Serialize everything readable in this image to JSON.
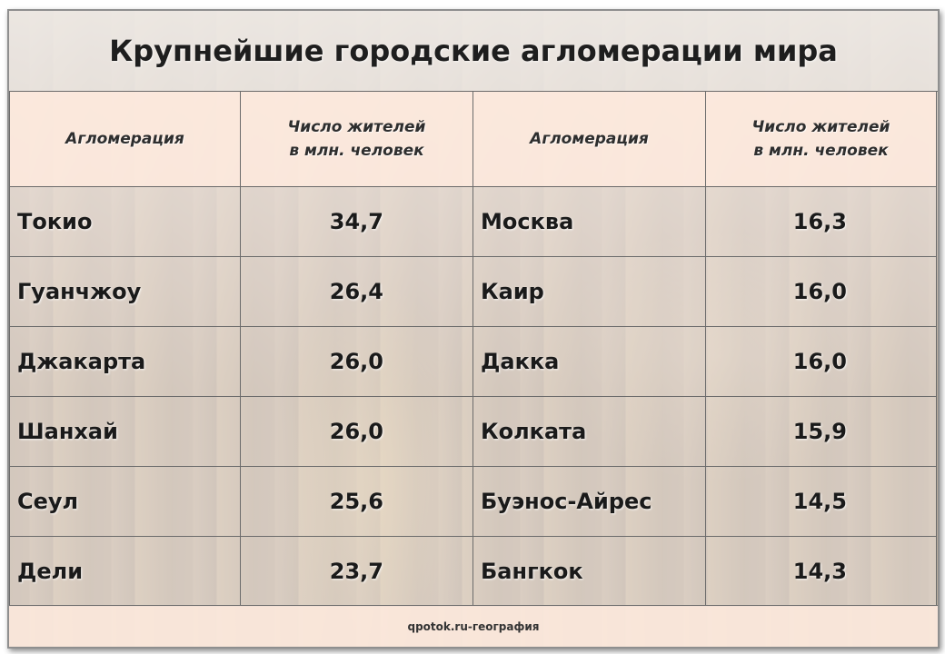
{
  "title": "Крупнейшие городские агломерации мира",
  "headers": {
    "col_name": "Агломерация",
    "col_value_line1": "Число жителей",
    "col_value_line2": "в млн. человек"
  },
  "rows": [
    {
      "left_name": "Токио",
      "left_value": "34,7",
      "right_name": "Москва",
      "right_value": "16,3"
    },
    {
      "left_name": "Гуанчжоу",
      "left_value": "26,4",
      "right_name": "Каир",
      "right_value": "16,0"
    },
    {
      "left_name": "Джакарта",
      "left_value": "26,0",
      "right_name": "Дакка",
      "right_value": "16,0"
    },
    {
      "left_name": "Шанхай",
      "left_value": "26,0",
      "right_name": "Колката",
      "right_value": "15,9"
    },
    {
      "left_name": "Сеул",
      "left_value": "25,6",
      "right_name": "Буэнос-Айрес",
      "right_value": "14,5"
    },
    {
      "left_name": "Дели",
      "left_value": "23,7",
      "right_name": "Бангкок",
      "right_value": "14,3"
    }
  ],
  "footer": "qpotok.ru-география"
}
